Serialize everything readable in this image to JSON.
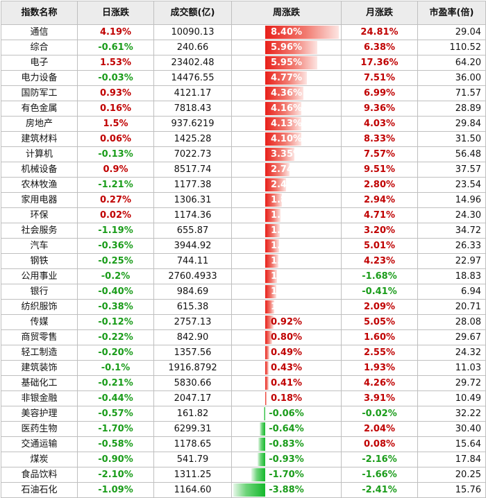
{
  "header": {
    "name": "指数名称",
    "daily": "日涨跌",
    "volume": "成交额(亿)",
    "weekly": "周涨跌",
    "monthly": "月涨跌",
    "pe": "市盈率(倍)"
  },
  "colors": {
    "up": "#c00000",
    "down": "#1a9c1a",
    "up_bar": "#e8201a",
    "down_bar": "#14b82c"
  },
  "rows": [
    {
      "name": "通信",
      "daily": "4.19%",
      "volume": "10090.13",
      "weekly": "8.40%",
      "weekly_value": 8.4,
      "monthly": "24.81%",
      "pe": "29.04"
    },
    {
      "name": "综合",
      "daily": "-0.61%",
      "volume": "240.66",
      "weekly": "5.96%",
      "weekly_value": 5.96,
      "monthly": "6.38%",
      "pe": "110.52"
    },
    {
      "name": "电子",
      "daily": "1.53%",
      "volume": "23402.48",
      "weekly": "5.95%",
      "weekly_value": 5.95,
      "monthly": "17.36%",
      "pe": "64.20"
    },
    {
      "name": "电力设备",
      "daily": "-0.03%",
      "volume": "14476.55",
      "weekly": "4.77%",
      "weekly_value": 4.77,
      "monthly": "7.51%",
      "pe": "36.00"
    },
    {
      "name": "国防军工",
      "daily": "0.93%",
      "volume": "4121.17",
      "weekly": "4.36%",
      "weekly_value": 4.36,
      "monthly": "6.99%",
      "pe": "71.57"
    },
    {
      "name": "有色金属",
      "daily": "0.16%",
      "volume": "7818.43",
      "weekly": "4.16%",
      "weekly_value": 4.16,
      "monthly": "9.36%",
      "pe": "28.89"
    },
    {
      "name": "房地产",
      "daily": "1.5%",
      "volume": "937.6219",
      "weekly": "4.13%",
      "weekly_value": 4.13,
      "monthly": "4.03%",
      "pe": "29.84"
    },
    {
      "name": "建筑材料",
      "daily": "0.06%",
      "volume": "1425.28",
      "weekly": "4.10%",
      "weekly_value": 4.1,
      "monthly": "8.33%",
      "pe": "31.50"
    },
    {
      "name": "计算机",
      "daily": "-0.13%",
      "volume": "7022.73",
      "weekly": "3.35%",
      "weekly_value": 3.35,
      "monthly": "7.57%",
      "pe": "56.48"
    },
    {
      "name": "机械设备",
      "daily": "0.9%",
      "volume": "8517.74",
      "weekly": "2.74%",
      "weekly_value": 2.74,
      "monthly": "9.51%",
      "pe": "37.57"
    },
    {
      "name": "农林牧渔",
      "daily": "-1.21%",
      "volume": "1177.38",
      "weekly": "2.41%",
      "weekly_value": 2.41,
      "monthly": "2.80%",
      "pe": "23.54"
    },
    {
      "name": "家用电器",
      "daily": "0.27%",
      "volume": "1306.31",
      "weekly": "1.89%",
      "weekly_value": 1.89,
      "monthly": "2.94%",
      "pe": "14.96"
    },
    {
      "name": "环保",
      "daily": "0.02%",
      "volume": "1174.36",
      "weekly": "1.76%",
      "weekly_value": 1.76,
      "monthly": "4.71%",
      "pe": "24.30"
    },
    {
      "name": "社会服务",
      "daily": "-1.19%",
      "volume": "655.87",
      "weekly": "1.63%",
      "weekly_value": 1.63,
      "monthly": "3.20%",
      "pe": "34.72"
    },
    {
      "name": "汽车",
      "daily": "-0.36%",
      "volume": "3944.92",
      "weekly": "1.57%",
      "weekly_value": 1.57,
      "monthly": "5.01%",
      "pe": "26.33"
    },
    {
      "name": "钢铁",
      "daily": "-0.25%",
      "volume": "744.11",
      "weekly": "1.50%",
      "weekly_value": 1.5,
      "monthly": "4.23%",
      "pe": "22.97"
    },
    {
      "name": "公用事业",
      "daily": "-0.2%",
      "volume": "2760.4933",
      "weekly": "1.36%",
      "weekly_value": 1.36,
      "monthly": "-1.68%",
      "pe": "18.83"
    },
    {
      "name": "银行",
      "daily": "-0.40%",
      "volume": "984.69",
      "weekly": "1.26%",
      "weekly_value": 1.26,
      "monthly": "-0.41%",
      "pe": "6.94"
    },
    {
      "name": "纺织服饰",
      "daily": "-0.38%",
      "volume": "615.38",
      "weekly": "1.00%",
      "weekly_value": 1.0,
      "monthly": "2.09%",
      "pe": "20.71"
    },
    {
      "name": "传媒",
      "daily": "-0.12%",
      "volume": "2757.13",
      "weekly": "0.92%",
      "weekly_value": 0.92,
      "monthly": "5.05%",
      "pe": "28.08"
    },
    {
      "name": "商贸零售",
      "daily": "-0.22%",
      "volume": "842.90",
      "weekly": "0.80%",
      "weekly_value": 0.8,
      "monthly": "1.60%",
      "pe": "29.67"
    },
    {
      "name": "轻工制造",
      "daily": "-0.20%",
      "volume": "1357.56",
      "weekly": "0.49%",
      "weekly_value": 0.49,
      "monthly": "2.55%",
      "pe": "24.32"
    },
    {
      "name": "建筑装饰",
      "daily": "-0.1%",
      "volume": "1916.8792",
      "weekly": "0.43%",
      "weekly_value": 0.43,
      "monthly": "1.93%",
      "pe": "11.03"
    },
    {
      "name": "基础化工",
      "daily": "-0.21%",
      "volume": "5830.66",
      "weekly": "0.41%",
      "weekly_value": 0.41,
      "monthly": "4.26%",
      "pe": "29.72"
    },
    {
      "name": "非银金融",
      "daily": "-0.44%",
      "volume": "2047.17",
      "weekly": "0.18%",
      "weekly_value": 0.18,
      "monthly": "3.91%",
      "pe": "10.49"
    },
    {
      "name": "美容护理",
      "daily": "-0.57%",
      "volume": "161.82",
      "weekly": "-0.06%",
      "weekly_value": -0.06,
      "monthly": "-0.02%",
      "pe": "32.22"
    },
    {
      "name": "医药生物",
      "daily": "-1.70%",
      "volume": "6299.31",
      "weekly": "-0.64%",
      "weekly_value": -0.64,
      "monthly": "2.04%",
      "pe": "30.40"
    },
    {
      "name": "交通运输",
      "daily": "-0.58%",
      "volume": "1178.65",
      "weekly": "-0.83%",
      "weekly_value": -0.83,
      "monthly": "0.08%",
      "pe": "15.64"
    },
    {
      "name": "煤炭",
      "daily": "-0.90%",
      "volume": "541.79",
      "weekly": "-0.93%",
      "weekly_value": -0.93,
      "monthly": "-2.16%",
      "pe": "17.84"
    },
    {
      "name": "食品饮料",
      "daily": "-2.10%",
      "volume": "1311.25",
      "weekly": "-1.70%",
      "weekly_value": -1.7,
      "monthly": "-1.66%",
      "pe": "20.25"
    },
    {
      "name": "石油石化",
      "daily": "-1.09%",
      "volume": "1164.60",
      "weekly": "-3.88%",
      "weekly_value": -3.88,
      "monthly": "-2.41%",
      "pe": "15.76"
    }
  ]
}
